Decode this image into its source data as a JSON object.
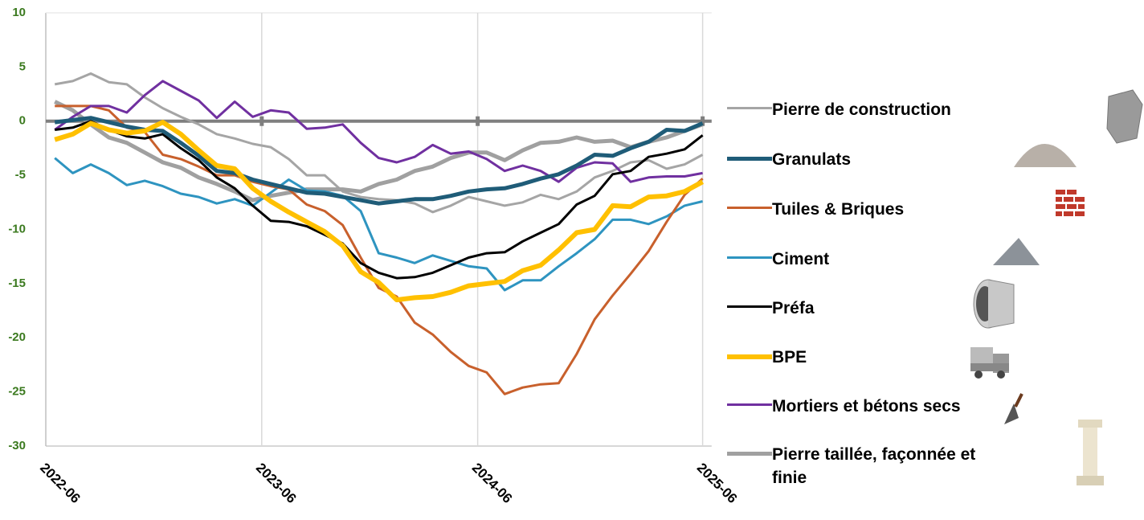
{
  "chart_data": {
    "type": "line",
    "categories": [
      "2022-06",
      null,
      null,
      null,
      null,
      null,
      null,
      null,
      null,
      null,
      null,
      null,
      "2023-06",
      null,
      null,
      null,
      null,
      null,
      null,
      null,
      null,
      null,
      null,
      null,
      "2024-06",
      null,
      null,
      null,
      null,
      null,
      null,
      null,
      null,
      null,
      null,
      null,
      "2025-06"
    ],
    "ylim": [
      -30,
      10
    ],
    "yticks": [
      -30,
      -25,
      -20,
      -15,
      -10,
      -5,
      0,
      5,
      10
    ],
    "grid": true,
    "series": [
      {
        "name": "Pierre de construction",
        "color": "#a5a5a5",
        "values": [
          3.4,
          3.7,
          4.4,
          3.6,
          3.4,
          2.2,
          1.2,
          0.4,
          -0.3,
          -1.2,
          -1.6,
          -2.1,
          -2.4,
          -3.5,
          -5.0,
          -5.0,
          -6.5,
          -7.0,
          -7.2,
          -7.3,
          -7.6,
          -8.4,
          -7.8,
          -7.0,
          -7.4,
          -7.8,
          -7.5,
          -6.8,
          -7.2,
          -6.5,
          -5.2,
          -4.6,
          -3.8,
          -3.6,
          -4.4,
          -4.0,
          -3.1
        ]
      },
      {
        "name": "Granulats",
        "color": "#1f5c78",
        "values": [
          -0.1,
          0.1,
          0.3,
          -0.1,
          -0.5,
          -0.8,
          -0.9,
          -2.0,
          -3.2,
          -4.6,
          -4.8,
          -5.4,
          -5.8,
          -6.2,
          -6.6,
          -6.7,
          -7.0,
          -7.3,
          -7.6,
          -7.4,
          -7.2,
          -7.2,
          -6.9,
          -6.5,
          -6.3,
          -6.2,
          -5.8,
          -5.3,
          -4.9,
          -4.1,
          -3.1,
          -3.2,
          -2.5,
          -1.9,
          -0.8,
          -0.9,
          -0.2
        ]
      },
      {
        "name": "Tuiles & Briques",
        "color": "#c8602c",
        "values": [
          1.4,
          1.4,
          1.4,
          1.0,
          -0.6,
          -1.0,
          -3.1,
          -3.5,
          -4.2,
          -5.0,
          -5.0,
          -5.6,
          -6.0,
          -6.3,
          -7.7,
          -8.3,
          -9.6,
          -12.6,
          -15.4,
          -16.2,
          -18.6,
          -19.7,
          -21.3,
          -22.6,
          -23.2,
          -25.2,
          -24.6,
          -24.3,
          -24.2,
          -21.5,
          -18.3,
          -16.1,
          -14.1,
          -12.0,
          -9.3,
          -6.8,
          -5.3
        ]
      },
      {
        "name": "Ciment",
        "color": "#2e94c0",
        "values": [
          -3.4,
          -4.8,
          -4.0,
          -4.8,
          -5.9,
          -5.5,
          -6.0,
          -6.7,
          -7.0,
          -7.6,
          -7.2,
          -7.8,
          -6.6,
          -5.4,
          -6.4,
          -6.5,
          -6.9,
          -8.3,
          -12.2,
          -12.6,
          -13.1,
          -12.4,
          -12.9,
          -13.4,
          -13.6,
          -15.6,
          -14.7,
          -14.7,
          -13.4,
          -12.2,
          -10.9,
          -9.1,
          -9.1,
          -9.5,
          -8.8,
          -7.8,
          -7.4
        ]
      },
      {
        "name": "Préfa",
        "color": "#000000",
        "values": [
          -0.8,
          -0.6,
          0.0,
          -0.8,
          -1.4,
          -1.6,
          -1.2,
          -2.5,
          -3.6,
          -5.2,
          -6.2,
          -7.8,
          -9.2,
          -9.3,
          -9.7,
          -10.5,
          -11.3,
          -13.1,
          -14.0,
          -14.5,
          -14.4,
          -14.0,
          -13.3,
          -12.6,
          -12.2,
          -12.1,
          -11.1,
          -10.3,
          -9.5,
          -7.7,
          -6.9,
          -4.9,
          -4.6,
          -3.3,
          -3.0,
          -2.6,
          -1.3
        ]
      },
      {
        "name": "BPE",
        "color": "#ffc000",
        "values": [
          -1.7,
          -1.2,
          -0.2,
          -0.8,
          -1.1,
          -0.9,
          -0.1,
          -1.2,
          -2.7,
          -4.1,
          -4.4,
          -6.2,
          -7.4,
          -8.4,
          -9.3,
          -10.2,
          -11.5,
          -13.9,
          -14.9,
          -16.5,
          -16.3,
          -16.2,
          -15.8,
          -15.2,
          -15.0,
          -14.8,
          -13.8,
          -13.3,
          -11.9,
          -10.3,
          -10.0,
          -7.8,
          -7.9,
          -7.0,
          -6.9,
          -6.5,
          -5.6
        ]
      },
      {
        "name": "Mortiers et bétons secs",
        "color": "#7030a0",
        "values": [
          -0.8,
          0.4,
          1.4,
          1.4,
          0.8,
          2.4,
          3.7,
          2.8,
          1.9,
          0.3,
          1.8,
          0.4,
          1.0,
          0.8,
          -0.7,
          -0.6,
          -0.3,
          -2.0,
          -3.4,
          -3.8,
          -3.3,
          -2.2,
          -3.0,
          -2.8,
          -3.5,
          -4.6,
          -4.1,
          -4.6,
          -5.6,
          -4.3,
          -3.8,
          -3.9,
          -5.6,
          -5.2,
          -5.1,
          -5.1,
          -4.8
        ]
      },
      {
        "name": "Pierre taillée, façonnée et finie",
        "color": "#a0a0a0",
        "values": [
          1.8,
          1.0,
          -0.3,
          -1.5,
          -2.0,
          -2.9,
          -3.8,
          -4.3,
          -5.2,
          -5.8,
          -6.5,
          -7.3,
          -6.9,
          -6.6,
          -6.3,
          -6.3,
          -6.3,
          -6.5,
          -5.8,
          -5.4,
          -4.6,
          -4.2,
          -3.4,
          -2.9,
          -2.9,
          -3.6,
          -2.7,
          -2.0,
          -1.9,
          -1.5,
          -1.9,
          -1.8,
          -2.4,
          -1.9,
          -1.5,
          -0.9,
          -0.3
        ]
      }
    ]
  }
}
